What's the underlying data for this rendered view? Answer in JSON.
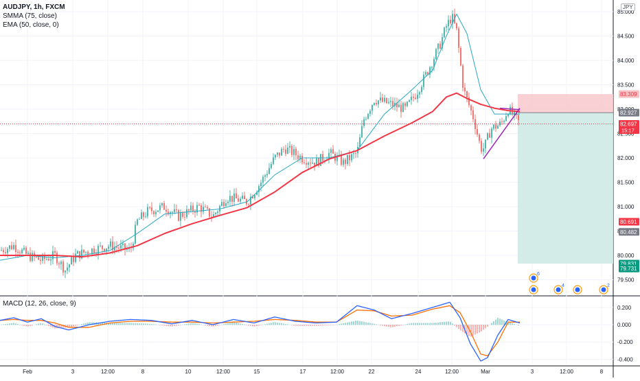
{
  "chart_data": [
    {
      "type": "line",
      "panel": "price",
      "title": "AUDJPY, 1h, FXCM",
      "currency": "JPY",
      "indicators": [
        "SMMA (75, close)",
        "EMA (50, close, 0)"
      ],
      "ylim": [
        79.35,
        85.15
      ],
      "y_ticks": [
        "85.000",
        "84.500",
        "84.000",
        "83.500",
        "83.000",
        "82.500",
        "82.000",
        "81.500",
        "81.000",
        "80.500",
        "80.000",
        "79.500"
      ],
      "x_labels": [
        "Feb",
        "3",
        "12:00",
        "8",
        "10",
        "12:00",
        "15",
        "17",
        "12:00",
        "22",
        "24",
        "12:00",
        "Mar",
        "3",
        "12:00",
        "8"
      ],
      "grid": true,
      "series": [
        {
          "name": "SMMA (75, close)",
          "color": "#f23645",
          "x": [
            0,
            40,
            80,
            120,
            160,
            200,
            240,
            280,
            320,
            360,
            400,
            440,
            480,
            520,
            560,
            600,
            630,
            650,
            665,
            680,
            700,
            720,
            740,
            757
          ],
          "values": [
            80.0,
            80.0,
            80.0,
            79.97,
            80.05,
            80.2,
            80.45,
            80.65,
            80.82,
            80.98,
            81.3,
            81.7,
            81.98,
            82.15,
            82.45,
            82.72,
            82.95,
            83.25,
            83.33,
            83.22,
            83.1,
            83.02,
            82.97,
            82.95
          ]
        },
        {
          "name": "EMA (50, close, 0)",
          "color": "#26a9c0",
          "x": [
            0,
            40,
            80,
            120,
            160,
            200,
            240,
            280,
            320,
            360,
            400,
            440,
            480,
            520,
            560,
            600,
            630,
            650,
            665,
            680,
            700,
            720,
            740,
            757
          ],
          "values": [
            79.9,
            80.0,
            79.95,
            80.0,
            80.1,
            80.45,
            80.85,
            80.9,
            80.95,
            81.1,
            81.65,
            82.0,
            82.0,
            82.15,
            82.9,
            83.4,
            83.8,
            84.5,
            84.95,
            84.55,
            83.4,
            82.9,
            82.9,
            82.9
          ]
        }
      ],
      "annotations": {
        "position_target_zone": {
          "from": 83.309,
          "to": 82.927,
          "color": "#f8c9cc"
        },
        "position_profit_zone": {
          "from": 82.927,
          "to": 79.831,
          "color": "#cfeae5"
        },
        "pattern_line_color": "#9c27b0",
        "pattern_line": {
          "from": [
            704,
            81.98
          ],
          "to": [
            757,
            83.02
          ]
        },
        "last_price_dotted": 82.697
      },
      "price_labels": [
        {
          "label": "83.309",
          "value": 83.309,
          "bg": "#f8bfc3",
          "color": "#f23645"
        },
        {
          "label": "82.927",
          "value": 82.927,
          "bg": "#787b86",
          "color": "#ffffff"
        },
        {
          "label": "82.697",
          "value": 82.697,
          "bg": "#f23645",
          "color": "#ffffff",
          "sublabel": "15:17"
        },
        {
          "label": "80.691",
          "value": 80.691,
          "bg": "#f23645",
          "color": "#ffffff"
        },
        {
          "label": "80.482",
          "value": 80.482,
          "bg": "#787b86",
          "color": "#ffffff"
        },
        {
          "label": "79.831",
          "value": 79.831,
          "bg": "#089981",
          "color": "#ffffff"
        },
        {
          "label": "79.731",
          "value": 79.731,
          "bg": "#089981",
          "color": "#ffffff"
        }
      ],
      "events": [
        {
          "symbol": "flag-icon",
          "count": "6"
        },
        {
          "symbol": "flag-icon",
          "count": ""
        },
        {
          "symbol": "flag-icon",
          "count": "4"
        },
        {
          "symbol": "flag-icon",
          "count": ""
        },
        {
          "symbol": "flag-icon",
          "count": "2"
        }
      ]
    },
    {
      "type": "line",
      "panel": "macd",
      "title": "MACD (12, 26, close, 9)",
      "ylim": [
        -0.46,
        0.27
      ],
      "y_ticks": [
        "0.200",
        "0.000",
        "-0.200",
        "-0.400"
      ],
      "series": [
        {
          "name": "MACD",
          "color": "#2962ff",
          "x": [
            0,
            20,
            40,
            60,
            80,
            100,
            130,
            160,
            190,
            220,
            250,
            280,
            310,
            340,
            370,
            400,
            430,
            460,
            490,
            520,
            545,
            570,
            600,
            630,
            655,
            670,
            685,
            700,
            710,
            725,
            740,
            757
          ],
          "values": [
            0.05,
            0.08,
            0.03,
            0.07,
            -0.02,
            -0.06,
            0.0,
            0.04,
            0.06,
            0.05,
            0.01,
            0.05,
            0.0,
            0.06,
            0.02,
            0.09,
            0.04,
            0.02,
            0.03,
            0.22,
            0.17,
            0.07,
            0.13,
            0.2,
            0.26,
            0.08,
            -0.22,
            -0.42,
            -0.38,
            -0.12,
            0.06,
            0.02
          ]
        },
        {
          "name": "Signal",
          "color": "#ff6d00",
          "x": [
            0,
            20,
            40,
            60,
            80,
            100,
            130,
            160,
            190,
            220,
            250,
            280,
            310,
            340,
            370,
            400,
            430,
            460,
            490,
            520,
            545,
            570,
            600,
            630,
            655,
            670,
            685,
            700,
            710,
            725,
            740,
            757
          ],
          "values": [
            0.05,
            0.06,
            0.05,
            0.05,
            0.02,
            -0.03,
            -0.03,
            0.02,
            0.04,
            0.04,
            0.03,
            0.03,
            0.02,
            0.03,
            0.04,
            0.06,
            0.05,
            0.03,
            0.03,
            0.17,
            0.16,
            0.1,
            0.11,
            0.18,
            0.22,
            0.14,
            -0.08,
            -0.34,
            -0.36,
            -0.2,
            0.03,
            0.03
          ]
        }
      ]
    }
  ]
}
